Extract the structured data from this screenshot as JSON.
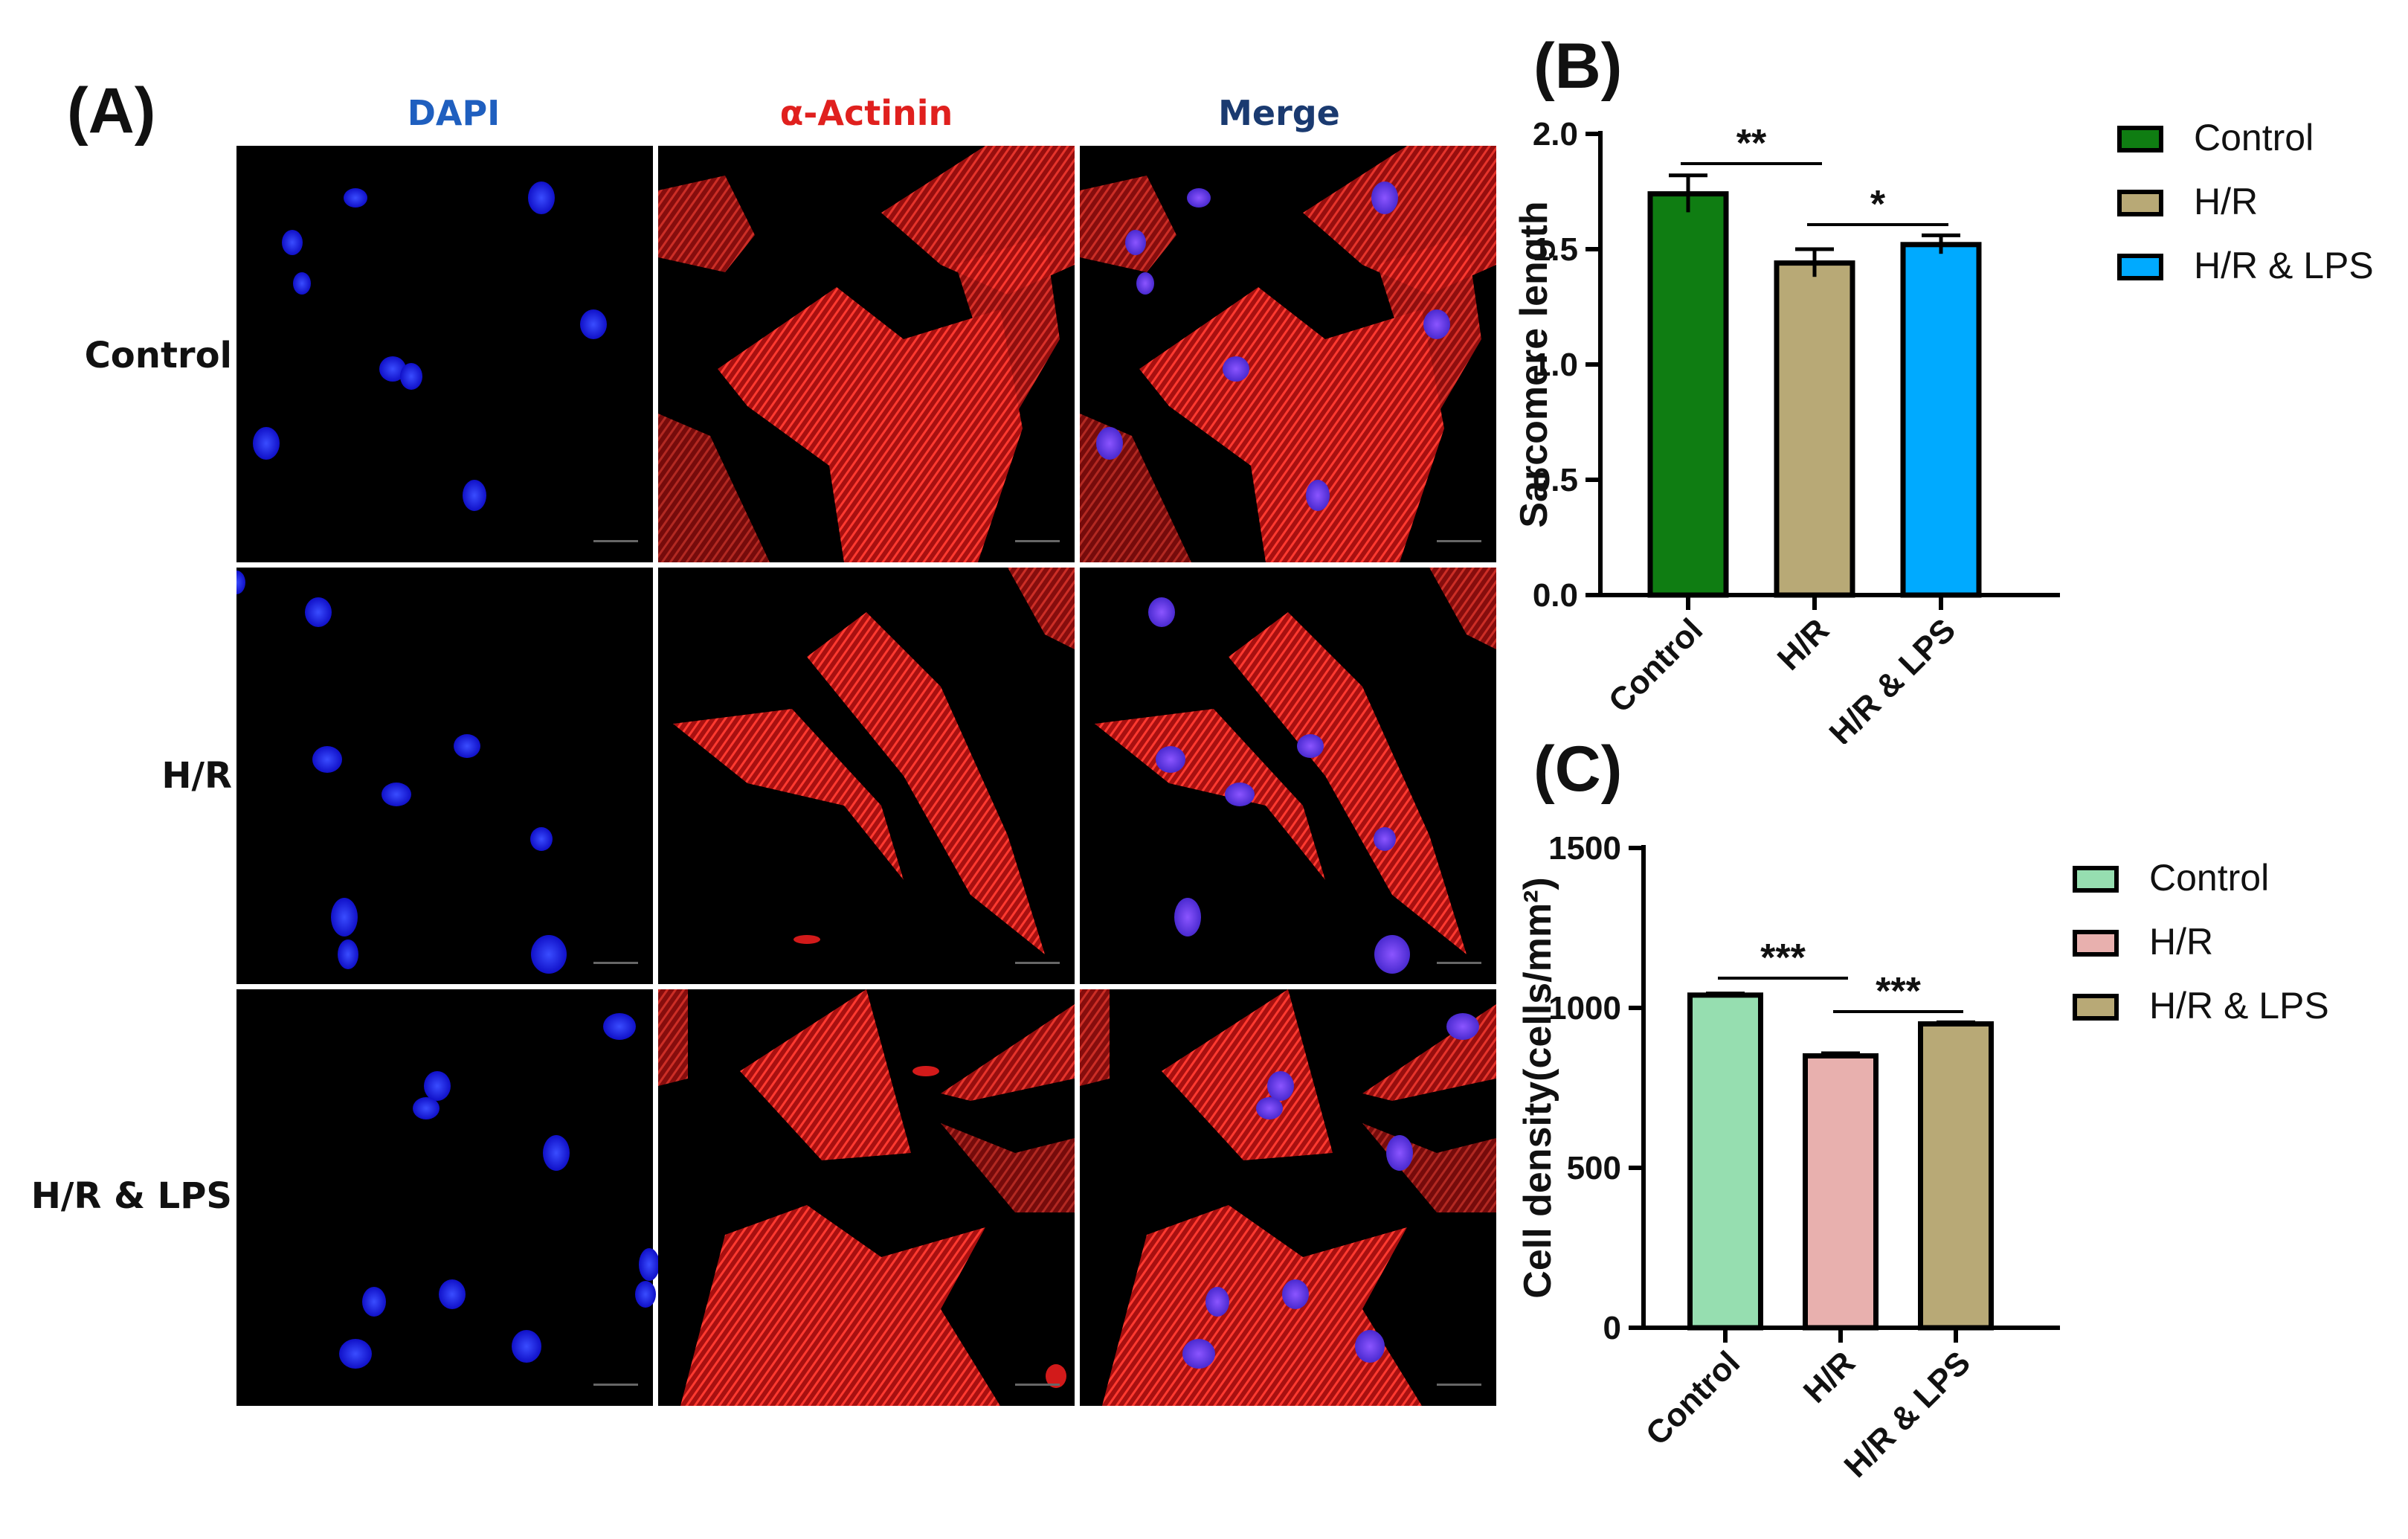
{
  "panels": {
    "a": {
      "letter": "(A)",
      "columns": [
        {
          "label": "DAPI",
          "color": "#1f5fbf"
        },
        {
          "label": "α-Actinin",
          "color": "#e0201e"
        },
        {
          "label": "Merge",
          "color": "#1a3a70"
        }
      ],
      "rows": [
        "Control",
        "H/R",
        "H/R & LPS"
      ]
    },
    "b": {
      "letter": "(B)"
    },
    "c": {
      "letter": "(C)"
    }
  },
  "chart_data": [
    {
      "type": "bar",
      "categories": [
        "Control",
        "H/R",
        "H/R & LPS"
      ],
      "values": [
        1.74,
        1.44,
        1.52
      ],
      "errors": [
        0.08,
        0.06,
        0.04
      ],
      "colors": [
        "#0f7d12",
        "#b8a976",
        "#00aaff"
      ],
      "ylabel": "Sarcomere length",
      "ylim": [
        0,
        2.0
      ],
      "yticks": [
        "0.0",
        "0.5",
        "1.0",
        "1.5",
        "2.0"
      ],
      "legend": [
        "Control",
        "H/R",
        "H/R & LPS"
      ],
      "legend_position": "right",
      "significance": [
        {
          "from": "Control",
          "to": "H/R",
          "label": "**"
        },
        {
          "from": "H/R",
          "to": "H/R & LPS",
          "label": "*"
        }
      ]
    },
    {
      "type": "bar",
      "categories": [
        "Control",
        "H/R",
        "H/R & LPS"
      ],
      "values": [
        1040,
        850,
        950
      ],
      "errors": [
        5,
        8,
        5
      ],
      "colors": [
        "#96deb0",
        "#e8b0ae",
        "#b8a976"
      ],
      "ylabel": "Cell density(cells/mm²)",
      "ylim": [
        0,
        1500
      ],
      "yticks": [
        "0",
        "500",
        "1000",
        "1500"
      ],
      "legend": [
        "Control",
        "H/R",
        "H/R & LPS"
      ],
      "legend_position": "right",
      "significance": [
        {
          "from": "Control",
          "to": "H/R",
          "label": "***"
        },
        {
          "from": "H/R",
          "to": "H/R & LPS",
          "label": "***"
        }
      ]
    }
  ]
}
